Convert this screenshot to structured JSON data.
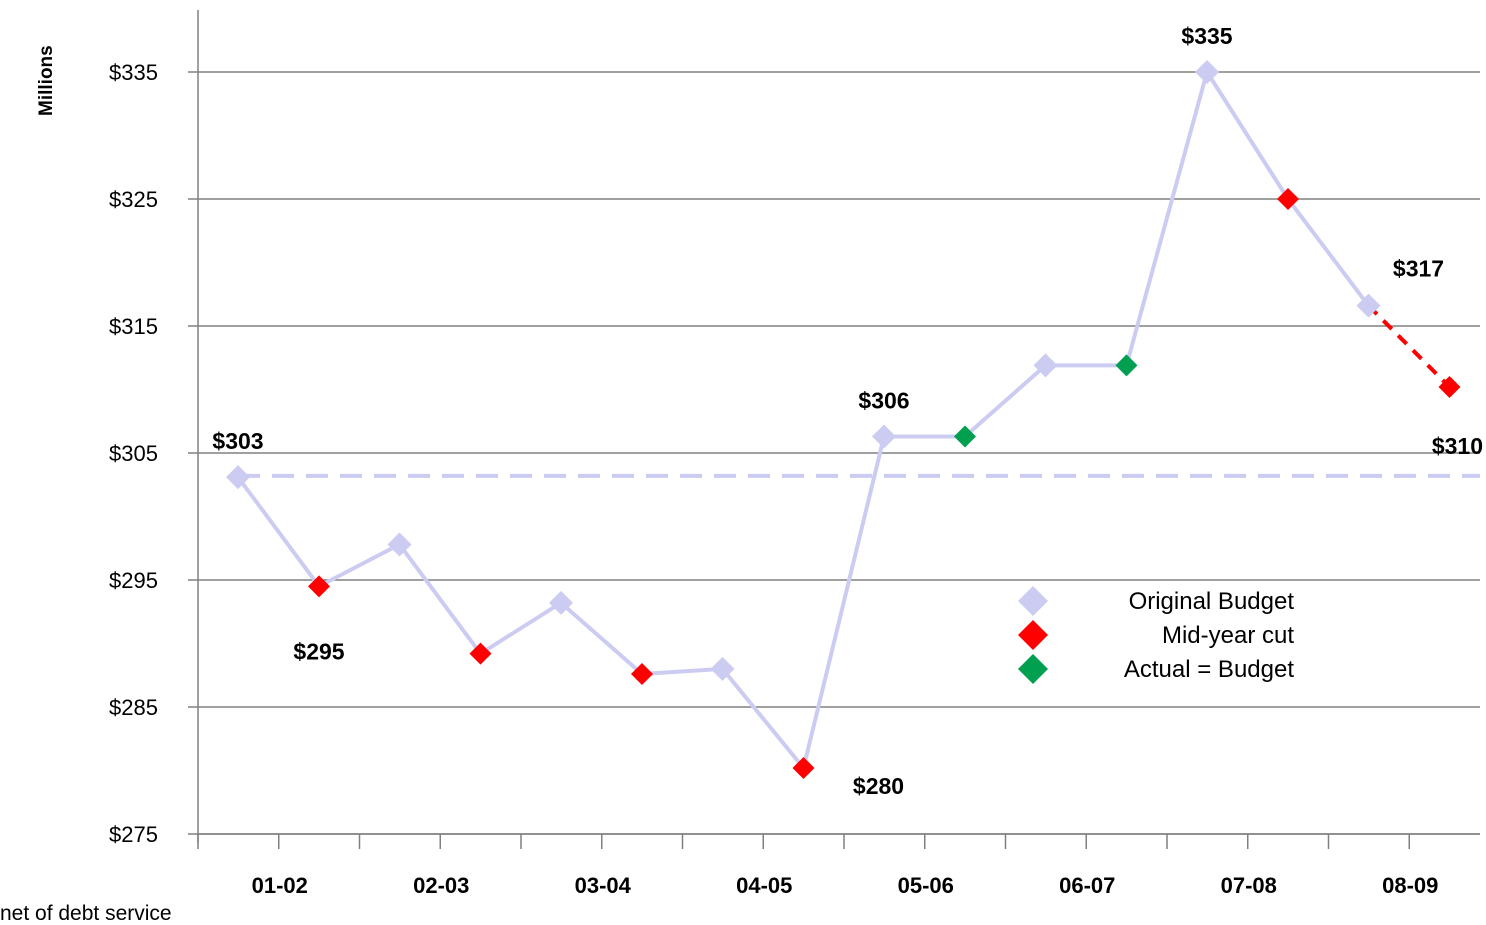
{
  "chart_data": {
    "type": "line",
    "ylabel": "Millions",
    "ylim": [
      275,
      340
    ],
    "yticks": [
      275,
      285,
      295,
      305,
      315,
      325,
      335
    ],
    "ytick_labels": [
      "$275",
      "$285",
      "$295",
      "$305",
      "$315",
      "$325",
      "$335"
    ],
    "grid": "horizontal",
    "categories": [
      "01-02",
      "02-03",
      "03-04",
      "04-05",
      "05-06",
      "06-07",
      "07-08",
      "08-09"
    ],
    "points": [
      {
        "category": "01-02",
        "slot": 0,
        "value": 303.1,
        "kind": "original"
      },
      {
        "category": "01-02",
        "slot": 1,
        "value": 294.5,
        "kind": "midyear"
      },
      {
        "category": "02-03",
        "slot": 0,
        "value": 297.8,
        "kind": "original"
      },
      {
        "category": "02-03",
        "slot": 1,
        "value": 289.2,
        "kind": "midyear"
      },
      {
        "category": "03-04",
        "slot": 0,
        "value": 293.2,
        "kind": "original"
      },
      {
        "category": "03-04",
        "slot": 1,
        "value": 287.6,
        "kind": "midyear"
      },
      {
        "category": "04-05",
        "slot": 0,
        "value": 288.0,
        "kind": "original"
      },
      {
        "category": "04-05",
        "slot": 1,
        "value": 280.2,
        "kind": "midyear"
      },
      {
        "category": "05-06",
        "slot": 0,
        "value": 306.3,
        "kind": "original"
      },
      {
        "category": "05-06",
        "slot": 1,
        "value": 306.3,
        "kind": "actual"
      },
      {
        "category": "06-07",
        "slot": 0,
        "value": 311.9,
        "kind": "original"
      },
      {
        "category": "06-07",
        "slot": 1,
        "value": 311.9,
        "kind": "actual"
      },
      {
        "category": "07-08",
        "slot": 0,
        "value": 335.0,
        "kind": "original"
      },
      {
        "category": "07-08",
        "slot": 1,
        "value": 325.0,
        "kind": "midyear"
      },
      {
        "category": "08-09",
        "slot": 0,
        "value": 316.6,
        "kind": "original"
      },
      {
        "category": "08-09",
        "slot": 1,
        "value": 310.2,
        "kind": "midyear"
      }
    ],
    "reference_line": {
      "value": 303.2,
      "style": "dashed"
    },
    "annotations": [
      {
        "text": "$303",
        "point": 0,
        "pos": "above"
      },
      {
        "text": "$295",
        "point": 1,
        "pos": "below"
      },
      {
        "text": "$280",
        "point": 7,
        "pos": "below-right"
      },
      {
        "text": "$306",
        "point": 8,
        "pos": "above"
      },
      {
        "text": "$335",
        "point": 12,
        "pos": "above"
      },
      {
        "text": "$317",
        "point": 14,
        "pos": "above-right"
      },
      {
        "text": "$310",
        "point": 15,
        "pos": "reference-right"
      }
    ],
    "legend": {
      "position": "center-right",
      "items": [
        {
          "label": "Original Budget",
          "kind": "original"
        },
        {
          "label": "Mid-year cut",
          "kind": "midyear"
        },
        {
          "label": "Actual = Budget",
          "kind": "actual"
        }
      ]
    },
    "colors": {
      "original": "#ccccf2",
      "midyear": "#ff0000",
      "actual": "#00a050",
      "line": "#ccccf2",
      "projection": "#ff0000",
      "grid": "#808080",
      "axis": "#808080"
    }
  },
  "footnote": "net of debt service"
}
